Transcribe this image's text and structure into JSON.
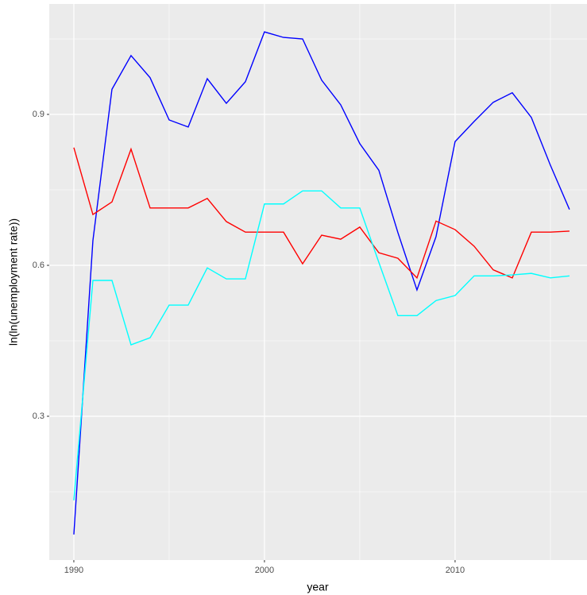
{
  "chart_data": {
    "type": "line",
    "x_label": "year",
    "y_label": "ln(ln(unemployment rate))",
    "x": [
      1990,
      1991,
      1992,
      1993,
      1994,
      1995,
      1996,
      1997,
      1998,
      1999,
      2000,
      2001,
      2002,
      2003,
      2004,
      2005,
      2006,
      2007,
      2008,
      2009,
      2010,
      2011,
      2012,
      2013,
      2014,
      2015,
      2016
    ],
    "series": [
      {
        "color": "#0000ff",
        "values": [
          0.065,
          0.649,
          0.95,
          1.017,
          0.973,
          0.889,
          0.875,
          0.971,
          0.922,
          0.965,
          1.064,
          1.053,
          1.05,
          0.968,
          0.919,
          0.842,
          0.789,
          0.665,
          0.551,
          0.657,
          0.846,
          0.886,
          0.924,
          0.943,
          0.894,
          0.799,
          0.711
        ]
      },
      {
        "color": "#ff0000",
        "values": [
          0.834,
          0.701,
          0.726,
          0.831,
          0.714,
          0.714,
          0.714,
          0.733,
          0.687,
          0.666,
          0.666,
          0.666,
          0.603,
          0.66,
          0.652,
          0.676,
          0.625,
          0.614,
          0.575,
          0.688,
          0.671,
          0.638,
          0.591,
          0.575,
          0.666,
          0.666,
          0.668
        ]
      },
      {
        "color": "#00ffff",
        "values": [
          0.133,
          0.57,
          0.57,
          0.442,
          0.456,
          0.521,
          0.521,
          0.595,
          0.573,
          0.573,
          0.722,
          0.722,
          0.748,
          0.748,
          0.714,
          0.714,
          0.606,
          0.5,
          0.5,
          0.53,
          0.54,
          0.579,
          0.579,
          0.581,
          0.584,
          0.575,
          0.579
        ]
      }
    ],
    "xlim": [
      1988.71,
      2016.92
    ],
    "ylim": [
      0.0142,
      1.1195
    ],
    "xticks": [
      1990,
      2000,
      2010
    ],
    "yticks": [
      0.3,
      0.6,
      0.9
    ],
    "minor_xticks": [
      1995,
      2005,
      2015
    ],
    "minor_yticks": [
      0.15,
      0.45,
      0.75,
      1.05
    ],
    "grid": true
  }
}
